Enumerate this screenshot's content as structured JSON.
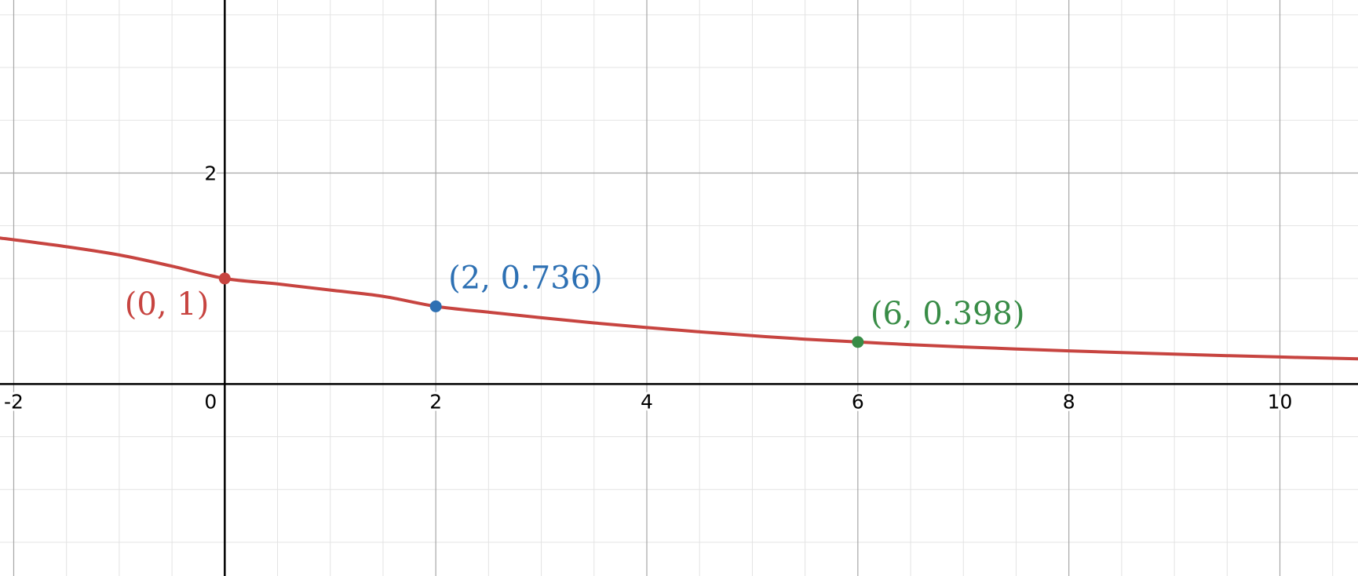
{
  "chart_data": {
    "type": "line",
    "xlim": [
      -2.13,
      10.74
    ],
    "ylim": [
      -1.82,
      3.64
    ],
    "grid": true,
    "minor_grid_step": 0.5,
    "major_grid_step": 2,
    "x_ticks": [
      {
        "value": -2,
        "label": "-2"
      },
      {
        "value": 0,
        "label": "0"
      },
      {
        "value": 2,
        "label": "2"
      },
      {
        "value": 4,
        "label": "4"
      },
      {
        "value": 6,
        "label": "6"
      },
      {
        "value": 8,
        "label": "8"
      },
      {
        "value": 10,
        "label": "10"
      }
    ],
    "y_ticks": [
      {
        "value": 2,
        "label": "2"
      }
    ],
    "series": [
      {
        "color": "#c74440",
        "x": [
          -2.13,
          -1.5,
          -1,
          -0.5,
          0,
          0.5,
          1,
          1.5,
          2,
          2.5,
          3,
          3.5,
          4,
          4.5,
          5,
          5.5,
          6,
          6.5,
          7,
          7.5,
          8,
          8.5,
          9,
          9.5,
          10,
          10.5,
          10.74
        ],
        "y": [
          1.384,
          1.301,
          1.223,
          1.117,
          1.0,
          0.949,
          0.891,
          0.831,
          0.736,
          0.681,
          0.628,
          0.579,
          0.535,
          0.495,
          0.458,
          0.425,
          0.398,
          0.373,
          0.351,
          0.332,
          0.314,
          0.298,
          0.283,
          0.269,
          0.256,
          0.244,
          0.239
        ]
      }
    ],
    "points": [
      {
        "x": 0,
        "y": 1,
        "label": "(0, 1)",
        "color": "#c74440",
        "label_pos": "left"
      },
      {
        "x": 2,
        "y": 0.736,
        "label": "(2, 0.736)",
        "color": "#2d70b3",
        "label_pos": "above-right"
      },
      {
        "x": 6,
        "y": 0.398,
        "label": "(6, 0.398)",
        "color": "#388c46",
        "label_pos": "above-right"
      }
    ],
    "title": "",
    "xlabel": "",
    "ylabel": ""
  }
}
